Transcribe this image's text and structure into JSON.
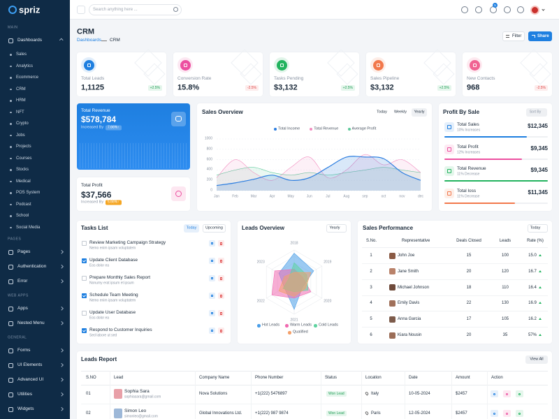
{
  "sidebar": {
    "logo": "spriz",
    "sections": [
      {
        "title": "MAIN",
        "items": [
          {
            "label": "Dashboards",
            "children": [
              "Sales",
              "Analytics",
              "Ecommerce",
              "CRM",
              "HRM",
              "NFT",
              "Crypto",
              "Jobs",
              "Projects",
              "Courses",
              "Stocks",
              "Medical",
              "POS System",
              "Podcast",
              "School",
              "Social Media"
            ]
          }
        ]
      },
      {
        "title": "PAGES",
        "items": [
          {
            "label": "Pages"
          },
          {
            "label": "Authentication"
          },
          {
            "label": "Error"
          }
        ]
      },
      {
        "title": "WEB APPS",
        "items": [
          {
            "label": "Apps"
          },
          {
            "label": "Nested Menu"
          }
        ]
      },
      {
        "title": "GENERAL",
        "items": [
          {
            "label": "Forms"
          },
          {
            "label": "UI Elements"
          },
          {
            "label": "Advanced UI"
          },
          {
            "label": "Utilities"
          },
          {
            "label": "Widgets"
          }
        ]
      }
    ]
  },
  "topbar": {
    "search_placeholder": "Search anything here ...",
    "notification_count": "5"
  },
  "header": {
    "title": "CRM",
    "breadcrumb": [
      "Dashboards",
      "CRM"
    ],
    "buttons": [
      "Filter",
      "Share"
    ]
  },
  "stats": [
    {
      "label": "Total Leads",
      "value": "1,1125",
      "change": "+2.5%",
      "color": "#1e7fe0"
    },
    {
      "label": "Conversion Rate",
      "value": "15.8%",
      "change": "-2.5%",
      "color": "#ec4fa0"
    },
    {
      "label": "Tasks Pending",
      "value": "$3,132",
      "change": "+2.5%",
      "color": "#22b35e"
    },
    {
      "label": "Sales Pipeline",
      "value": "$3,132",
      "change": "+2.5%",
      "color": "#f2784b"
    },
    {
      "label": "New Contacts",
      "value": "968",
      "change": "-2.5%",
      "color": "#f06292"
    }
  ],
  "revenue": {
    "title": "Total Revenue",
    "value": "$578,784",
    "note": "Increased By",
    "badge": "7.66%↑"
  },
  "profit": {
    "title": "Total Profit",
    "value": "$37,566",
    "note": "Increased By",
    "badge": "5.66%↑"
  },
  "chart_data": [
    {
      "type": "line",
      "title": "Sales Overview",
      "tabs": [
        "Today",
        "Weekly",
        "Yearly"
      ],
      "categories": [
        "Jan",
        "Feb",
        "Mar",
        "Apr",
        "May",
        "Jun",
        "Jul",
        "Aug",
        "sep",
        "oct",
        "nov",
        "dec"
      ],
      "series": [
        {
          "name": "Total Income",
          "color": "#2b7de0",
          "values": [
            100,
            150,
            220,
            300,
            200,
            250,
            450,
            650,
            650,
            620,
            350,
            200
          ]
        },
        {
          "name": "Total Revenue",
          "color": "#f28cbf",
          "values": [
            250,
            600,
            350,
            200,
            450,
            650,
            250,
            400,
            700,
            500,
            600,
            350
          ]
        },
        {
          "name": "Average Profit",
          "color": "#5cc99a",
          "values": [
            300,
            400,
            450,
            350,
            300,
            350,
            300,
            350,
            400,
            450,
            400,
            350
          ]
        }
      ],
      "ylim": [
        0,
        1000
      ],
      "yticks": [
        0,
        200,
        400,
        600,
        800,
        1000
      ],
      "grid": true
    },
    {
      "type": "radar",
      "title": "Leads Overview",
      "filter": "Yearly",
      "categories": [
        "2018",
        "2019",
        "2020",
        "2021",
        "2022",
        "2023"
      ],
      "series": [
        {
          "name": "Hot Leads",
          "color": "#4a9ee8",
          "values": [
            90,
            70,
            30,
            85,
            35,
            55
          ]
        },
        {
          "name": "Warm Leads",
          "color": "#f06ab0",
          "values": [
            40,
            30,
            60,
            50,
            80,
            70
          ]
        },
        {
          "name": "Cold Leads",
          "color": "#5fd3a0",
          "values": [
            60,
            45,
            50,
            30,
            40,
            20
          ]
        },
        {
          "name": "Qualified",
          "color": "#f4a06a",
          "values": [
            30,
            60,
            40,
            45,
            55,
            35
          ]
        }
      ],
      "rlim": [
        0,
        100
      ]
    }
  ],
  "profit_by_sale": {
    "title": "Profit By Sale",
    "sort": "Sort By",
    "items": [
      {
        "label": "Total Sales",
        "note": "10% Increases",
        "value": "$12,345",
        "color": "#1e7fe0",
        "progress": 80
      },
      {
        "label": "Total Profit",
        "note": "12% Increases",
        "value": "$9,345",
        "color": "#ec4fa0",
        "progress": 75
      },
      {
        "label": "Total Revenue",
        "note": "11% Decrease",
        "value": "$9,345",
        "color": "#22b35e",
        "progress": 100
      },
      {
        "label": "Total loss",
        "note": "11% Decrease",
        "value": "$11,345",
        "color": "#f2784b",
        "progress": 68
      }
    ]
  },
  "tasks": {
    "title": "Tasks List",
    "tabs": [
      "Today",
      "Upcoming"
    ],
    "items": [
      {
        "title": "Review Marketing Campaign Strategy",
        "subtitle": "Nemo enim ipsam voluptatem",
        "done": false
      },
      {
        "title": "Update Client Database",
        "subtitle": "Eos dolor ea",
        "done": true
      },
      {
        "title": "Prepare Monthly Sales Report",
        "subtitle": "Nonumy erat ipsum et ipsum",
        "done": false
      },
      {
        "title": "Schedule Team Meeting",
        "subtitle": "Nemo enim ipsam voluptatem",
        "done": true
      },
      {
        "title": "Update User Database",
        "subtitle": "Eos dolor ea",
        "done": false
      },
      {
        "title": "Respond to Customer Inquiries",
        "subtitle": "Sed labore ut sed",
        "done": true
      }
    ]
  },
  "sales_performance": {
    "title": "Sales Performance",
    "filter": "Today",
    "columns": [
      "S.No.",
      "Representative",
      "Deals Closed",
      "Leads",
      "Rate (%)"
    ],
    "rows": [
      [
        "1",
        "John Joe",
        "15",
        "100",
        "15.0"
      ],
      [
        "2",
        "Jane Smith",
        "20",
        "120",
        "16.7"
      ],
      [
        "3",
        "Michael Johnson",
        "18",
        "110",
        "16.4"
      ],
      [
        "4",
        "Emily Davis",
        "22",
        "130",
        "16.9"
      ],
      [
        "5",
        "Anna Garcia",
        "17",
        "105",
        "16.2"
      ],
      [
        "6",
        "Kiara Nousin",
        "20",
        "35",
        "57%"
      ]
    ]
  },
  "leads_report": {
    "title": "Leads Report",
    "button": "View All",
    "columns": [
      "S.NO",
      "Lead",
      "Company Name",
      "Phone Number",
      "Status",
      "Location",
      "Date",
      "Amount",
      "Action"
    ],
    "rows": [
      {
        "sno": "01",
        "name": "Sophia Sara",
        "email": "sophiasara@gmail.com",
        "company": "Nova Solutions",
        "phone": "+1(222) 5476897",
        "status": "Won Lead",
        "location": "Italy",
        "date": "10-05-2024",
        "amount": "$2457"
      },
      {
        "sno": "02",
        "name": "Simon Leo",
        "email": "simonleo@gmail.com",
        "company": "Global Innovations Ltd.",
        "phone": "+1(222) 987 9874",
        "status": "Won Lead",
        "location": "Paris",
        "date": "12-05-2024",
        "amount": "$2457"
      }
    ]
  }
}
